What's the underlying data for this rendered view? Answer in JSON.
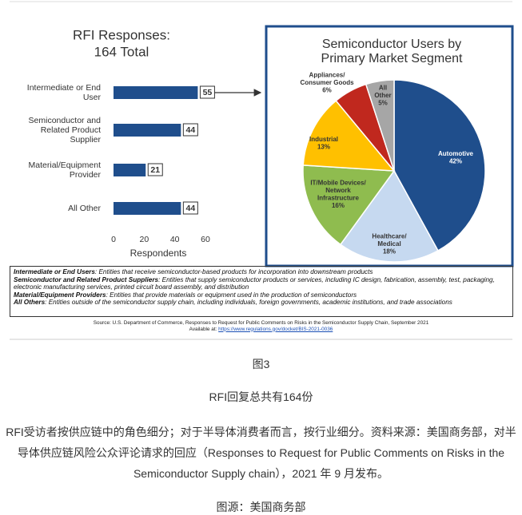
{
  "chart_data": [
    {
      "type": "hbar",
      "title": "RFI Responses:\n164 Total",
      "categories": [
        "Intermediate or End\nUser",
        "Semiconductor and\nRelated Product\nSupplier",
        "Material/Equipment\nProvider",
        "All Other"
      ],
      "values": [
        55,
        44,
        21,
        44
      ],
      "color": "#1f4e8c",
      "xlim": [
        0,
        60
      ],
      "xticks": [
        0,
        20,
        40,
        60
      ],
      "xlabel": "Respondents"
    },
    {
      "type": "pie",
      "title": "Semiconductor Users by\nPrimary Market Segment",
      "categories": [
        "Automotive",
        "Healthcare/\nMedical",
        "IT/Mobile Devices/\nNetwork\nInfrastructure",
        "Industrial",
        "Appliances/\nConsumer Goods",
        "All\nOther"
      ],
      "values": [
        42,
        18,
        16,
        13,
        6,
        5
      ],
      "value_labels": [
        "42%",
        "18%",
        "16%",
        "13%",
        "6%",
        "5%"
      ],
      "colors": [
        "#1f4e8c",
        "#c6d9f0",
        "#8fbc4f",
        "#ffc000",
        "#c0281e",
        "#a6a6a6"
      ]
    }
  ],
  "definitions": [
    {
      "term": "Intermediate or End Users",
      "text": ": Entities that receive semiconductor-based products for incorporation into downstream products"
    },
    {
      "term": "Semiconductor and Related Product Suppliers",
      "text": ": Entities that supply semiconductor products or services, including IC design, fabrication, assembly, test, packaging, electronic manufacturing services, printed circuit board assembly, and  distribution"
    },
    {
      "term": "Material/Equipment Providers",
      "text": ": Entities that provide materials or equipment used in the production of semiconductors"
    },
    {
      "term": "All Others",
      "text": ": Entities outside of the semiconductor supply chain, including individuals, foreign governments, academic institutions, and trade associations"
    }
  ],
  "source": {
    "line": "Source: U.S. Department of Commerce, Responses to Request for Public Comments on Risks in the Semiconductor Supply Chain, September 2021",
    "available": "Available at: ",
    "url": "https://www.regulations.gov/docket/BIS-2021-0036"
  },
  "figure_label": "图3",
  "caption": "RFI回复总共有164份",
  "description": "RFI受访者按供应链中的角色细分；对于半导体消费者而言，按行业细分。资料来源：美国商务部，对半导体供应链风险公众评论请求的回应（Responses to Request for Public Comments on Risks in the Semiconductor Supply chain），2021 年 9 月发布。",
  "image_source": "图源：美国商务部"
}
